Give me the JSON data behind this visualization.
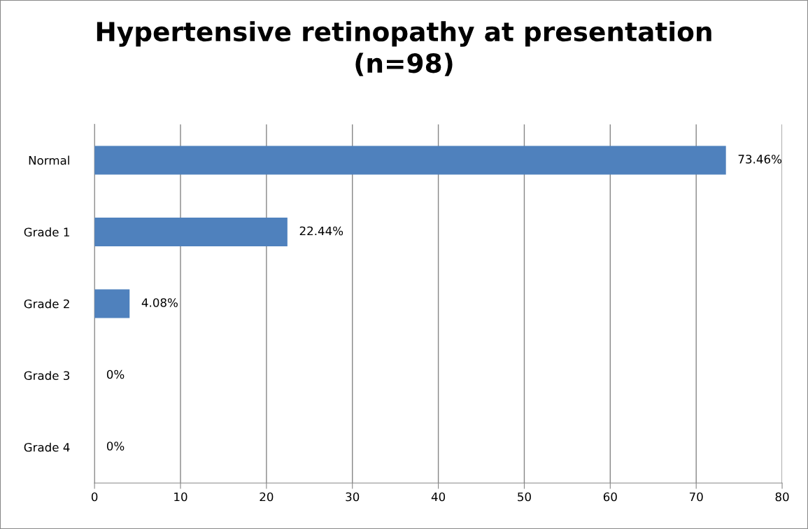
{
  "chart_data": {
    "type": "bar",
    "orientation": "horizontal",
    "title": "Hypertensive retinopathy at presentation\n(n=98)",
    "categories": [
      "Normal",
      "Grade 1",
      "Grade 2",
      "Grade 3",
      "Grade 4"
    ],
    "values": [
      73.46,
      22.44,
      4.08,
      0,
      0
    ],
    "value_labels": [
      "73.46%",
      "22.44%",
      "4.08%",
      "0%",
      "0%"
    ],
    "color": "#4f81bd",
    "xlim": [
      0,
      80
    ],
    "xticks": [
      0,
      10,
      20,
      30,
      40,
      50,
      60,
      70,
      80
    ],
    "grid": "x",
    "legend": false
  }
}
